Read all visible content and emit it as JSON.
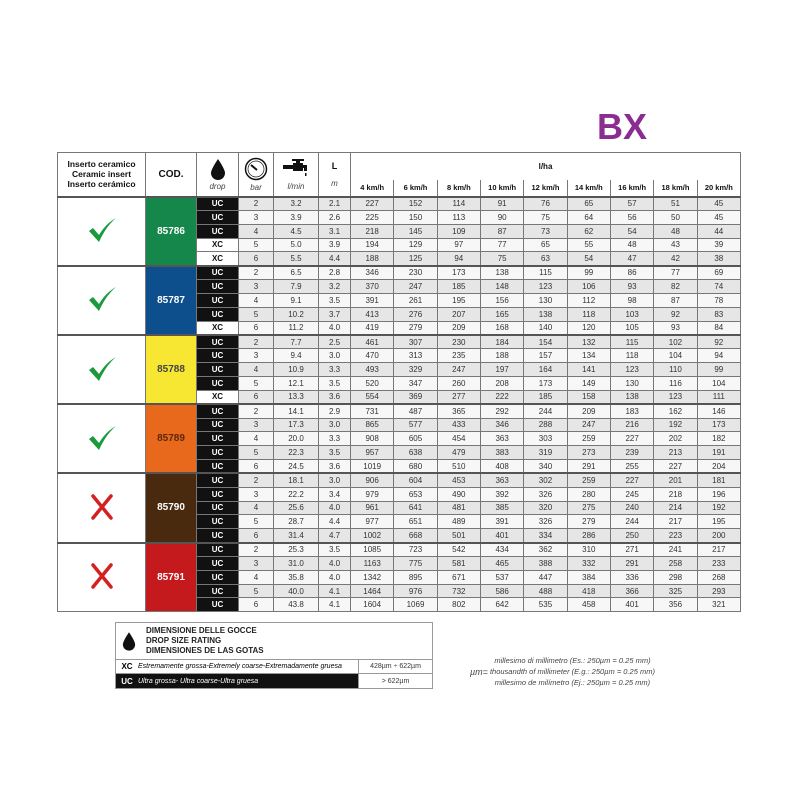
{
  "title": "BX",
  "header": {
    "insert": [
      "Inserto ceramico",
      "Ceramic insert",
      "Inserto cerámico"
    ],
    "cod": "COD.",
    "drop": "drop",
    "bar": "bar",
    "lmin": "l/min",
    "L": "L",
    "m": "m",
    "lha": "l/ha",
    "speeds": [
      "4 km/h",
      "6 km/h",
      "8 km/h",
      "10 km/h",
      "12 km/h",
      "14 km/h",
      "16 km/h",
      "18 km/h",
      "20 km/h"
    ]
  },
  "groups": [
    {
      "code": "85786",
      "color": "#16874a",
      "text_color": "#ffffff",
      "ceramic": "check",
      "rows": [
        [
          "UC",
          "2",
          "3.2",
          "2.1",
          "227",
          "152",
          "114",
          "91",
          "76",
          "65",
          "57",
          "51",
          "45"
        ],
        [
          "UC",
          "3",
          "3.9",
          "2.6",
          "225",
          "150",
          "113",
          "90",
          "75",
          "64",
          "56",
          "50",
          "45"
        ],
        [
          "UC",
          "4",
          "4.5",
          "3.1",
          "218",
          "145",
          "109",
          "87",
          "73",
          "62",
          "54",
          "48",
          "44"
        ],
        [
          "XC",
          "5",
          "5.0",
          "3.9",
          "194",
          "129",
          "97",
          "77",
          "65",
          "55",
          "48",
          "43",
          "39"
        ],
        [
          "XC",
          "6",
          "5.5",
          "4.4",
          "188",
          "125",
          "94",
          "75",
          "63",
          "54",
          "47",
          "42",
          "38"
        ]
      ]
    },
    {
      "code": "85787",
      "color": "#0d4e8c",
      "text_color": "#ffffff",
      "ceramic": "check",
      "rows": [
        [
          "UC",
          "2",
          "6.5",
          "2.8",
          "346",
          "230",
          "173",
          "138",
          "115",
          "99",
          "86",
          "77",
          "69"
        ],
        [
          "UC",
          "3",
          "7.9",
          "3.2",
          "370",
          "247",
          "185",
          "148",
          "123",
          "106",
          "93",
          "82",
          "74"
        ],
        [
          "UC",
          "4",
          "9.1",
          "3.5",
          "391",
          "261",
          "195",
          "156",
          "130",
          "112",
          "98",
          "87",
          "78"
        ],
        [
          "UC",
          "5",
          "10.2",
          "3.7",
          "413",
          "276",
          "207",
          "165",
          "138",
          "118",
          "103",
          "92",
          "83"
        ],
        [
          "XC",
          "6",
          "11.2",
          "4.0",
          "419",
          "279",
          "209",
          "168",
          "140",
          "120",
          "105",
          "93",
          "84"
        ]
      ]
    },
    {
      "code": "85788",
      "color": "#f7e733",
      "text_color": "#444444",
      "ceramic": "check",
      "rows": [
        [
          "UC",
          "2",
          "7.7",
          "2.5",
          "461",
          "307",
          "230",
          "184",
          "154",
          "132",
          "115",
          "102",
          "92"
        ],
        [
          "UC",
          "3",
          "9.4",
          "3.0",
          "470",
          "313",
          "235",
          "188",
          "157",
          "134",
          "118",
          "104",
          "94"
        ],
        [
          "UC",
          "4",
          "10.9",
          "3.3",
          "493",
          "329",
          "247",
          "197",
          "164",
          "141",
          "123",
          "110",
          "99"
        ],
        [
          "UC",
          "5",
          "12.1",
          "3.5",
          "520",
          "347",
          "260",
          "208",
          "173",
          "149",
          "130",
          "116",
          "104"
        ],
        [
          "XC",
          "6",
          "13.3",
          "3.6",
          "554",
          "369",
          "277",
          "222",
          "185",
          "158",
          "138",
          "123",
          "111"
        ]
      ]
    },
    {
      "code": "85789",
      "color": "#e8681c",
      "text_color": "#5a2a0a",
      "ceramic": "check",
      "rows": [
        [
          "UC",
          "2",
          "14.1",
          "2.9",
          "731",
          "487",
          "365",
          "292",
          "244",
          "209",
          "183",
          "162",
          "146"
        ],
        [
          "UC",
          "3",
          "17.3",
          "3.0",
          "865",
          "577",
          "433",
          "346",
          "288",
          "247",
          "216",
          "192",
          "173"
        ],
        [
          "UC",
          "4",
          "20.0",
          "3.3",
          "908",
          "605",
          "454",
          "363",
          "303",
          "259",
          "227",
          "202",
          "182"
        ],
        [
          "UC",
          "5",
          "22.3",
          "3.5",
          "957",
          "638",
          "479",
          "383",
          "319",
          "273",
          "239",
          "213",
          "191"
        ],
        [
          "UC",
          "6",
          "24.5",
          "3.6",
          "1019",
          "680",
          "510",
          "408",
          "340",
          "291",
          "255",
          "227",
          "204"
        ]
      ]
    },
    {
      "code": "85790",
      "color": "#4a2a0e",
      "text_color": "#ffffff",
      "ceramic": "cross",
      "rows": [
        [
          "UC",
          "2",
          "18.1",
          "3.0",
          "906",
          "604",
          "453",
          "363",
          "302",
          "259",
          "227",
          "201",
          "181"
        ],
        [
          "UC",
          "3",
          "22.2",
          "3.4",
          "979",
          "653",
          "490",
          "392",
          "326",
          "280",
          "245",
          "218",
          "196"
        ],
        [
          "UC",
          "4",
          "25.6",
          "4.0",
          "961",
          "641",
          "481",
          "385",
          "320",
          "275",
          "240",
          "214",
          "192"
        ],
        [
          "UC",
          "5",
          "28.7",
          "4.4",
          "977",
          "651",
          "489",
          "391",
          "326",
          "279",
          "244",
          "217",
          "195"
        ],
        [
          "UC",
          "6",
          "31.4",
          "4.7",
          "1002",
          "668",
          "501",
          "401",
          "334",
          "286",
          "250",
          "223",
          "200"
        ]
      ]
    },
    {
      "code": "85791",
      "color": "#c41a1e",
      "text_color": "#ffffff",
      "ceramic": "cross",
      "rows": [
        [
          "UC",
          "2",
          "25.3",
          "3.5",
          "1085",
          "723",
          "542",
          "434",
          "362",
          "310",
          "271",
          "241",
          "217"
        ],
        [
          "UC",
          "3",
          "31.0",
          "4.0",
          "1163",
          "775",
          "581",
          "465",
          "388",
          "332",
          "291",
          "258",
          "233"
        ],
        [
          "UC",
          "4",
          "35.8",
          "4.0",
          "1342",
          "895",
          "671",
          "537",
          "447",
          "384",
          "336",
          "298",
          "268"
        ],
        [
          "UC",
          "5",
          "40.0",
          "4.1",
          "1464",
          "976",
          "732",
          "586",
          "488",
          "418",
          "366",
          "325",
          "293"
        ],
        [
          "UC",
          "6",
          "43.8",
          "4.1",
          "1604",
          "1069",
          "802",
          "642",
          "535",
          "458",
          "401",
          "356",
          "321"
        ]
      ]
    }
  ],
  "legend": {
    "title": [
      "DIMENSIONE DELLE GOCCE",
      "DROP SIZE RATING",
      "DIMENSIONES DE LAS GOTAS"
    ],
    "rows": [
      {
        "key": "XC",
        "desc": "Estremamente grossa-Extremely coarse-Extremadamente gruesa",
        "range": "428µm ÷ 622µm"
      },
      {
        "key": "UC",
        "desc": "Ultra grossa- Ultra coarse-Ultra gruesa",
        "range": "> 622µm"
      }
    ]
  },
  "micron": {
    "symbol": "µm=",
    "lines": [
      "millesimo di millimetro (Es.: 250µm = 0.25 mm)",
      "thousandth of millimeter (E.g.: 250µm = 0.25 mm)",
      "millesimo de milímetro (Ej.: 250µm = 0.25 mm)"
    ]
  },
  "colors": {
    "check": "#1a9a3a",
    "cross": "#d42020",
    "title": "#8b2c90"
  }
}
